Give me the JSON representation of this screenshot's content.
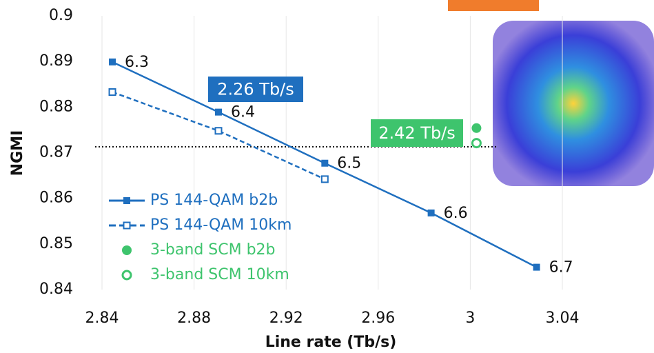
{
  "chart_data": {
    "type": "line",
    "x_label": "Line rate (Tb/s)",
    "y_label": "NGMI",
    "xlim": [
      2.84,
      3.04
    ],
    "xticks": [
      2.84,
      2.88,
      2.92,
      2.96,
      3,
      3.04
    ],
    "ylim": [
      0.84,
      0.9
    ],
    "yticks": [
      0.84,
      0.85,
      0.86,
      0.87,
      0.88,
      0.89,
      0.9
    ],
    "hline": 0.8713,
    "series": [
      {
        "name": "PS 144-QAM b2b",
        "color": "#1f6fbf",
        "marker": "square-filled",
        "line": "solid",
        "x": [
          2.8445,
          2.8906,
          2.9368,
          2.983,
          3.0288
        ],
        "values": [
          0.8899,
          0.8789,
          0.8677,
          0.8568,
          0.8449
        ],
        "point_labels": [
          "6.3",
          "6.4",
          "6.5",
          "6.6",
          "6.7"
        ]
      },
      {
        "name": "PS 144-QAM 10km",
        "color": "#1f6fbf",
        "marker": "square-open",
        "line": "dashed",
        "x": [
          2.8445,
          2.8906,
          2.9368
        ],
        "values": [
          0.8833,
          0.8748,
          0.8642
        ]
      },
      {
        "name": "3-band SCM b2b",
        "color": "#3ec46d",
        "marker": "circle-filled",
        "line": "none",
        "x": [
          3.0027
        ],
        "values": [
          0.8754
        ]
      },
      {
        "name": "3-band SCM 10km",
        "color": "#3ec46d",
        "marker": "circle-open",
        "line": "none",
        "x": [
          3.0027
        ],
        "values": [
          0.8721
        ]
      }
    ],
    "annotations": [
      {
        "text": "2.26 Tb/s",
        "color": "#1f6fbf"
      },
      {
        "text": "2.42 Tb/s",
        "color": "#3ec46d"
      }
    ]
  }
}
